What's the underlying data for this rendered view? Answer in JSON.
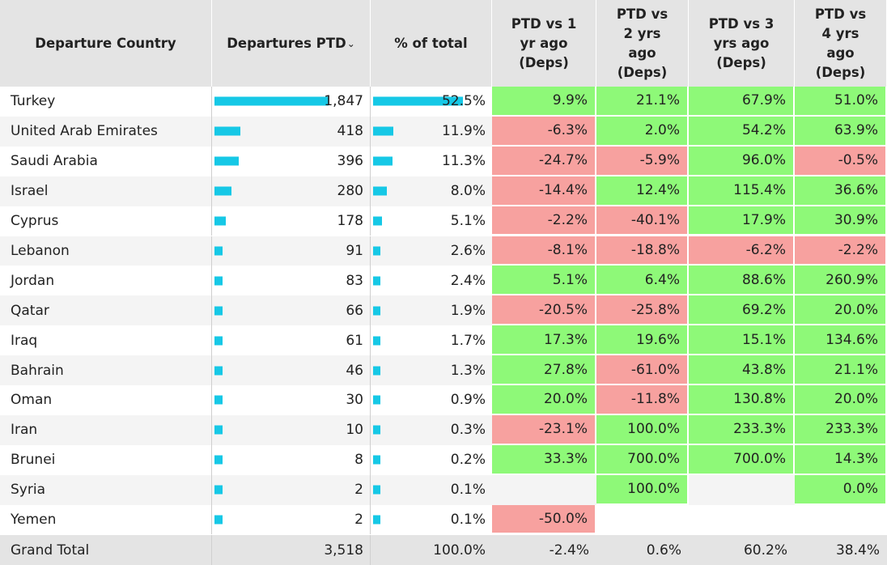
{
  "colors": {
    "header_bg": "#e4e4e4",
    "positive": "#8ef978",
    "negative": "#f7a19f",
    "bar": "#16c8e6",
    "alt_row": "#f4f4f4"
  },
  "columns": [
    {
      "label": "Departure Country"
    },
    {
      "label": "Departures PTD",
      "sort_icon": "sort-descending-icon",
      "sort_glyph": "⌄"
    },
    {
      "label": "% of total"
    },
    {
      "label": "PTD vs 1\nyr ago\n(Deps)"
    },
    {
      "label": "PTD vs\n2 yrs\nago\n(Deps)"
    },
    {
      "label": "PTD vs 3\nyrs ago\n(Deps)"
    },
    {
      "label": "PTD vs\n4 yrs\nago\n(Deps)"
    }
  ],
  "rows": [
    {
      "country": "Turkey",
      "departures": "1,847",
      "departures_value": 1847,
      "share": "52.5%",
      "share_value": 52.5,
      "vs1": "9.9%",
      "vs2": "21.1%",
      "vs3": "67.9%",
      "vs4": "51.0%"
    },
    {
      "country": "United Arab Emirates",
      "departures": "418",
      "departures_value": 418,
      "share": "11.9%",
      "share_value": 11.9,
      "vs1": "-6.3%",
      "vs2": "2.0%",
      "vs3": "54.2%",
      "vs4": "63.9%"
    },
    {
      "country": "Saudi Arabia",
      "departures": "396",
      "departures_value": 396,
      "share": "11.3%",
      "share_value": 11.3,
      "vs1": "-24.7%",
      "vs2": "-5.9%",
      "vs3": "96.0%",
      "vs4": "-0.5%"
    },
    {
      "country": "Israel",
      "departures": "280",
      "departures_value": 280,
      "share": "8.0%",
      "share_value": 8.0,
      "vs1": "-14.4%",
      "vs2": "12.4%",
      "vs3": "115.4%",
      "vs4": "36.6%"
    },
    {
      "country": "Cyprus",
      "departures": "178",
      "departures_value": 178,
      "share": "5.1%",
      "share_value": 5.1,
      "vs1": "-2.2%",
      "vs2": "-40.1%",
      "vs3": "17.9%",
      "vs4": "30.9%"
    },
    {
      "country": "Lebanon",
      "departures": "91",
      "departures_value": 91,
      "share": "2.6%",
      "share_value": 2.6,
      "vs1": "-8.1%",
      "vs2": "-18.8%",
      "vs3": "-6.2%",
      "vs4": "-2.2%"
    },
    {
      "country": "Jordan",
      "departures": "83",
      "departures_value": 83,
      "share": "2.4%",
      "share_value": 2.4,
      "vs1": "5.1%",
      "vs2": "6.4%",
      "vs3": "88.6%",
      "vs4": "260.9%"
    },
    {
      "country": "Qatar",
      "departures": "66",
      "departures_value": 66,
      "share": "1.9%",
      "share_value": 1.9,
      "vs1": "-20.5%",
      "vs2": "-25.8%",
      "vs3": "69.2%",
      "vs4": "20.0%"
    },
    {
      "country": "Iraq",
      "departures": "61",
      "departures_value": 61,
      "share": "1.7%",
      "share_value": 1.7,
      "vs1": "17.3%",
      "vs2": "19.6%",
      "vs3": "15.1%",
      "vs4": "134.6%"
    },
    {
      "country": "Bahrain",
      "departures": "46",
      "departures_value": 46,
      "share": "1.3%",
      "share_value": 1.3,
      "vs1": "27.8%",
      "vs2": "-61.0%",
      "vs3": "43.8%",
      "vs4": "21.1%"
    },
    {
      "country": "Oman",
      "departures": "30",
      "departures_value": 30,
      "share": "0.9%",
      "share_value": 0.9,
      "vs1": "20.0%",
      "vs2": "-11.8%",
      "vs3": "130.8%",
      "vs4": "20.0%"
    },
    {
      "country": "Iran",
      "departures": "10",
      "departures_value": 10,
      "share": "0.3%",
      "share_value": 0.3,
      "vs1": "-23.1%",
      "vs2": "100.0%",
      "vs3": "233.3%",
      "vs4": "233.3%"
    },
    {
      "country": "Brunei",
      "departures": "8",
      "departures_value": 8,
      "share": "0.2%",
      "share_value": 0.2,
      "vs1": "33.3%",
      "vs2": "700.0%",
      "vs3": "700.0%",
      "vs4": "14.3%"
    },
    {
      "country": "Syria",
      "departures": "2",
      "departures_value": 2,
      "share": "0.1%",
      "share_value": 0.1,
      "vs1": "",
      "vs2": "100.0%",
      "vs3": "",
      "vs4": "0.0%"
    },
    {
      "country": "Yemen",
      "departures": "2",
      "departures_value": 2,
      "share": "0.1%",
      "share_value": 0.1,
      "vs1": "-50.0%",
      "vs2": "",
      "vs3": "",
      "vs4": ""
    }
  ],
  "grand_total": {
    "label": "Grand Total",
    "departures": "3,518",
    "share": "100.0%",
    "vs1": "-2.4%",
    "vs2": "0.6%",
    "vs3": "60.2%",
    "vs4": "38.4%"
  }
}
